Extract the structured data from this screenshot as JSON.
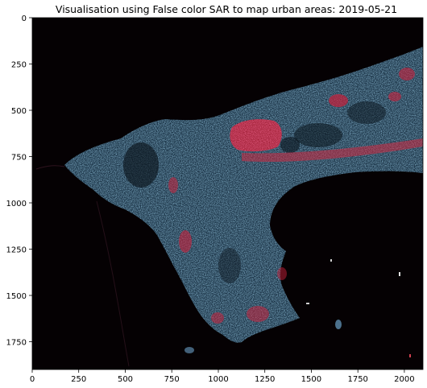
{
  "figure": {
    "title": "Visualisation using False color SAR to map urban areas: 2019-05-21",
    "x_ticks": [
      "0",
      "250",
      "500",
      "750",
      "1000",
      "1250",
      "1500",
      "1750",
      "2000"
    ],
    "y_ticks": [
      "0",
      "250",
      "500",
      "750",
      "1000",
      "1250",
      "1500",
      "1750"
    ],
    "x_range": [
      0,
      2100
    ],
    "y_range": [
      0,
      1900
    ],
    "colors": {
      "background": "#050103",
      "land_blue": "#5aa6d6",
      "urban_red": "#e0304a",
      "axis": "#000000"
    }
  }
}
